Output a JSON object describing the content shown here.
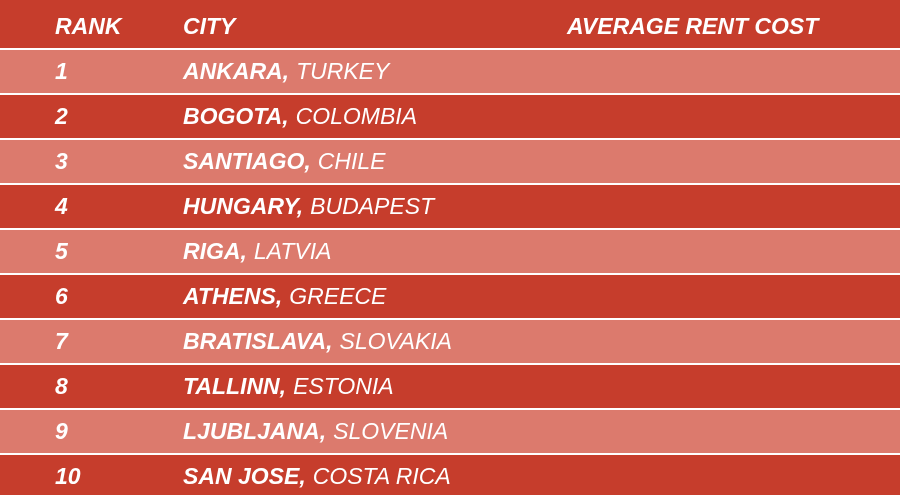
{
  "table": {
    "headers": [
      "RANK",
      "CITY",
      "AVERAGE RENT COST"
    ],
    "rows": [
      {
        "rank": 1,
        "city": "ANKARA,",
        "country": "TURKEY"
      },
      {
        "rank": 2,
        "city": "BOGOTA,",
        "country": "COLOMBIA"
      },
      {
        "rank": 3,
        "city": "SANTIAGO,",
        "country": "CHILE"
      },
      {
        "rank": 4,
        "city": "HUNGARY,",
        "country": "BUDAPEST"
      },
      {
        "rank": 5,
        "city": "RIGA,",
        "country": "LATVIA"
      },
      {
        "rank": 6,
        "city": "ATHENS,",
        "country": "GREECE"
      },
      {
        "rank": 7,
        "city": "BRATISLAVA,",
        "country": "SLOVAKIA"
      },
      {
        "rank": 8,
        "city": "TALLINN,",
        "country": "ESTONIA"
      },
      {
        "rank": 9,
        "city": "LJUBLJANA,",
        "country": "SLOVENIA"
      },
      {
        "rank": 10,
        "city": "SAN JOSE,",
        "country": "COSTA RICA"
      }
    ]
  }
}
